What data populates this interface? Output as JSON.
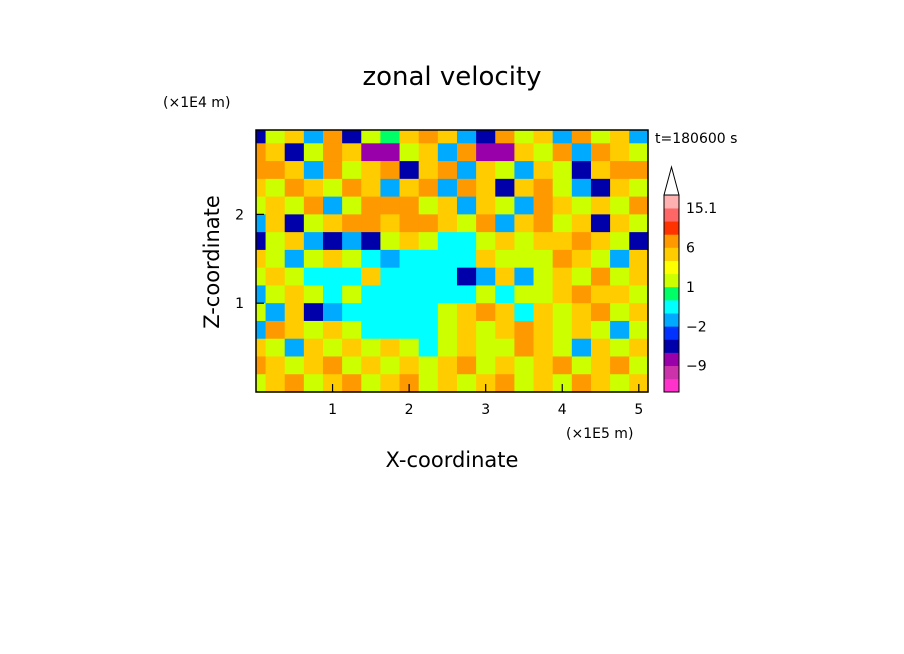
{
  "chart_data": {
    "type": "heatmap",
    "title": "zonal velocity",
    "xlabel": "X-coordinate",
    "ylabel": "Z-coordinate",
    "x_unit": "(×1E5 m)",
    "y_unit": "(×1E4 m)",
    "time_label": "t=180600 s",
    "xlim": [
      0,
      5.12
    ],
    "ylim": [
      0,
      2.95
    ],
    "x_ticks": [
      1,
      2,
      3,
      4,
      5
    ],
    "y_ticks": [
      1,
      2
    ],
    "colorbar": {
      "levels": [
        -15,
        -12,
        -9,
        -6,
        -3,
        -2,
        -1,
        0,
        1,
        2,
        3,
        6,
        9,
        12,
        15.1
      ],
      "labels": [
        "15.1",
        "6",
        "1",
        "−2",
        "−9"
      ],
      "colors": [
        "#ff33cc",
        "#cc33aa",
        "#9900aa",
        "#0000aa",
        "#0033ff",
        "#00aaff",
        "#00ffff",
        "#00ff66",
        "#ccff00",
        "#ffff00",
        "#ffcc00",
        "#ff9900",
        "#ff3300",
        "#ff6666",
        "#ffb0b0"
      ],
      "extend": "max"
    },
    "field": {
      "x": [
        0.0,
        0.25,
        0.5,
        0.75,
        1.0,
        1.25,
        1.5,
        1.75,
        2.0,
        2.25,
        2.5,
        2.75,
        3.0,
        3.25,
        3.5,
        3.75,
        4.0,
        4.25,
        4.5,
        4.75,
        5.0
      ],
      "z": [
        2.9,
        2.7,
        2.5,
        2.3,
        2.1,
        1.9,
        1.7,
        1.5,
        1.3,
        1.1,
        0.9,
        0.7,
        0.5,
        0.3,
        0.1
      ],
      "u": [
        [
          -6,
          1,
          3,
          -2,
          6,
          -6,
          1,
          0,
          3,
          6,
          3,
          -2,
          -6,
          6,
          1,
          3,
          -2,
          6,
          1,
          3,
          -2
        ],
        [
          6,
          3,
          -6,
          1,
          6,
          3,
          -9,
          -9,
          1,
          3,
          -2,
          6,
          -9,
          -9,
          3,
          1,
          6,
          -2,
          6,
          3,
          1
        ],
        [
          6,
          6,
          3,
          -2,
          6,
          1,
          3,
          6,
          -6,
          3,
          6,
          -2,
          3,
          1,
          -2,
          3,
          1,
          -6,
          3,
          6,
          6
        ],
        [
          3,
          1,
          6,
          3,
          1,
          6,
          3,
          -2,
          3,
          6,
          -2,
          6,
          3,
          -6,
          3,
          6,
          1,
          -2,
          -6,
          3,
          1
        ],
        [
          1,
          3,
          1,
          6,
          -2,
          1,
          6,
          6,
          6,
          1,
          3,
          -2,
          3,
          1,
          -2,
          6,
          3,
          1,
          3,
          1,
          6
        ],
        [
          -2,
          3,
          -6,
          1,
          3,
          6,
          6,
          3,
          6,
          6,
          3,
          1,
          6,
          -2,
          3,
          6,
          1,
          3,
          -6,
          3,
          1
        ],
        [
          -6,
          1,
          3,
          -2,
          -6,
          -2,
          -6,
          1,
          3,
          1,
          -1,
          -1,
          1,
          3,
          1,
          3,
          3,
          6,
          3,
          1,
          -6
        ],
        [
          3,
          1,
          -2,
          1,
          3,
          1,
          -1,
          -2,
          -1,
          -1,
          -1,
          -1,
          3,
          1,
          1,
          1,
          6,
          3,
          1,
          -2,
          3
        ],
        [
          1,
          3,
          1,
          -1,
          -1,
          -1,
          3,
          -1,
          -1,
          -1,
          -1,
          -6,
          -2,
          3,
          -2,
          1,
          3,
          1,
          6,
          1,
          3
        ],
        [
          -2,
          1,
          3,
          1,
          -1,
          1,
          -1,
          -1,
          -1,
          -1,
          -1,
          -1,
          1,
          -1,
          1,
          1,
          3,
          6,
          3,
          3,
          1
        ],
        [
          1,
          -2,
          3,
          -6,
          -2,
          -1,
          -1,
          -1,
          -1,
          -1,
          1,
          3,
          6,
          3,
          -1,
          3,
          1,
          3,
          6,
          1,
          3
        ],
        [
          -2,
          6,
          3,
          1,
          3,
          1,
          -1,
          -1,
          -1,
          -1,
          1,
          3,
          1,
          3,
          6,
          3,
          1,
          3,
          1,
          -2,
          1
        ],
        [
          3,
          1,
          -2,
          3,
          1,
          3,
          1,
          3,
          1,
          -1,
          1,
          3,
          1,
          1,
          6,
          3,
          1,
          -2,
          3,
          1,
          3
        ],
        [
          6,
          3,
          1,
          3,
          6,
          1,
          3,
          1,
          3,
          1,
          3,
          6,
          1,
          3,
          1,
          3,
          6,
          1,
          3,
          6,
          1
        ],
        [
          1,
          3,
          6,
          1,
          3,
          6,
          1,
          3,
          6,
          1,
          3,
          1,
          3,
          6,
          1,
          3,
          1,
          6,
          3,
          1,
          3
        ]
      ]
    }
  }
}
